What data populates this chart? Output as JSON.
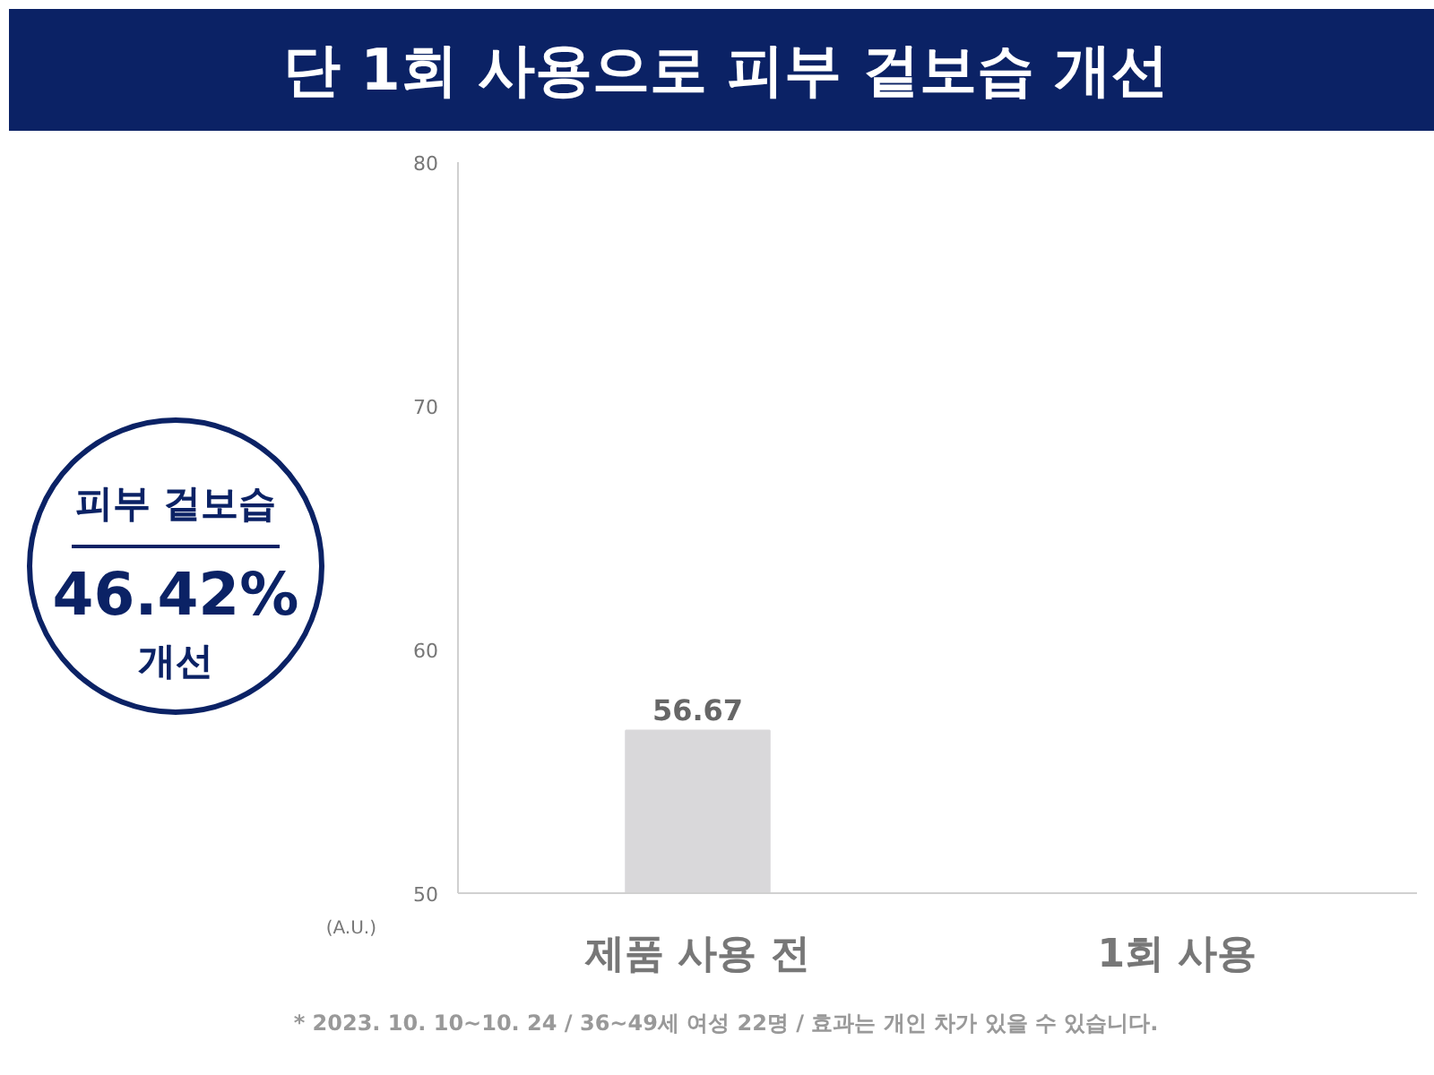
{
  "chart_data": {
    "type": "bar",
    "title": "단 1회 사용으로 피부 겉보습 개선",
    "ylabel": "(A.U.)",
    "categories": [
      "제품 사용 전",
      "1회 사용"
    ],
    "values": [
      56.67,
      null
    ],
    "color": "#d9d8da",
    "ylim": [
      50,
      80
    ],
    "yticks": [
      50,
      60,
      70,
      80
    ],
    "grid": false,
    "data_labels": true,
    "annotations": [
      "피부 겉보습",
      "46.42%",
      "개선",
      "* 2023. 10. 10~10. 24 / 36~49세 여성 22명 / 효과는 개인 차가 있을 수 있습니다."
    ]
  }
}
